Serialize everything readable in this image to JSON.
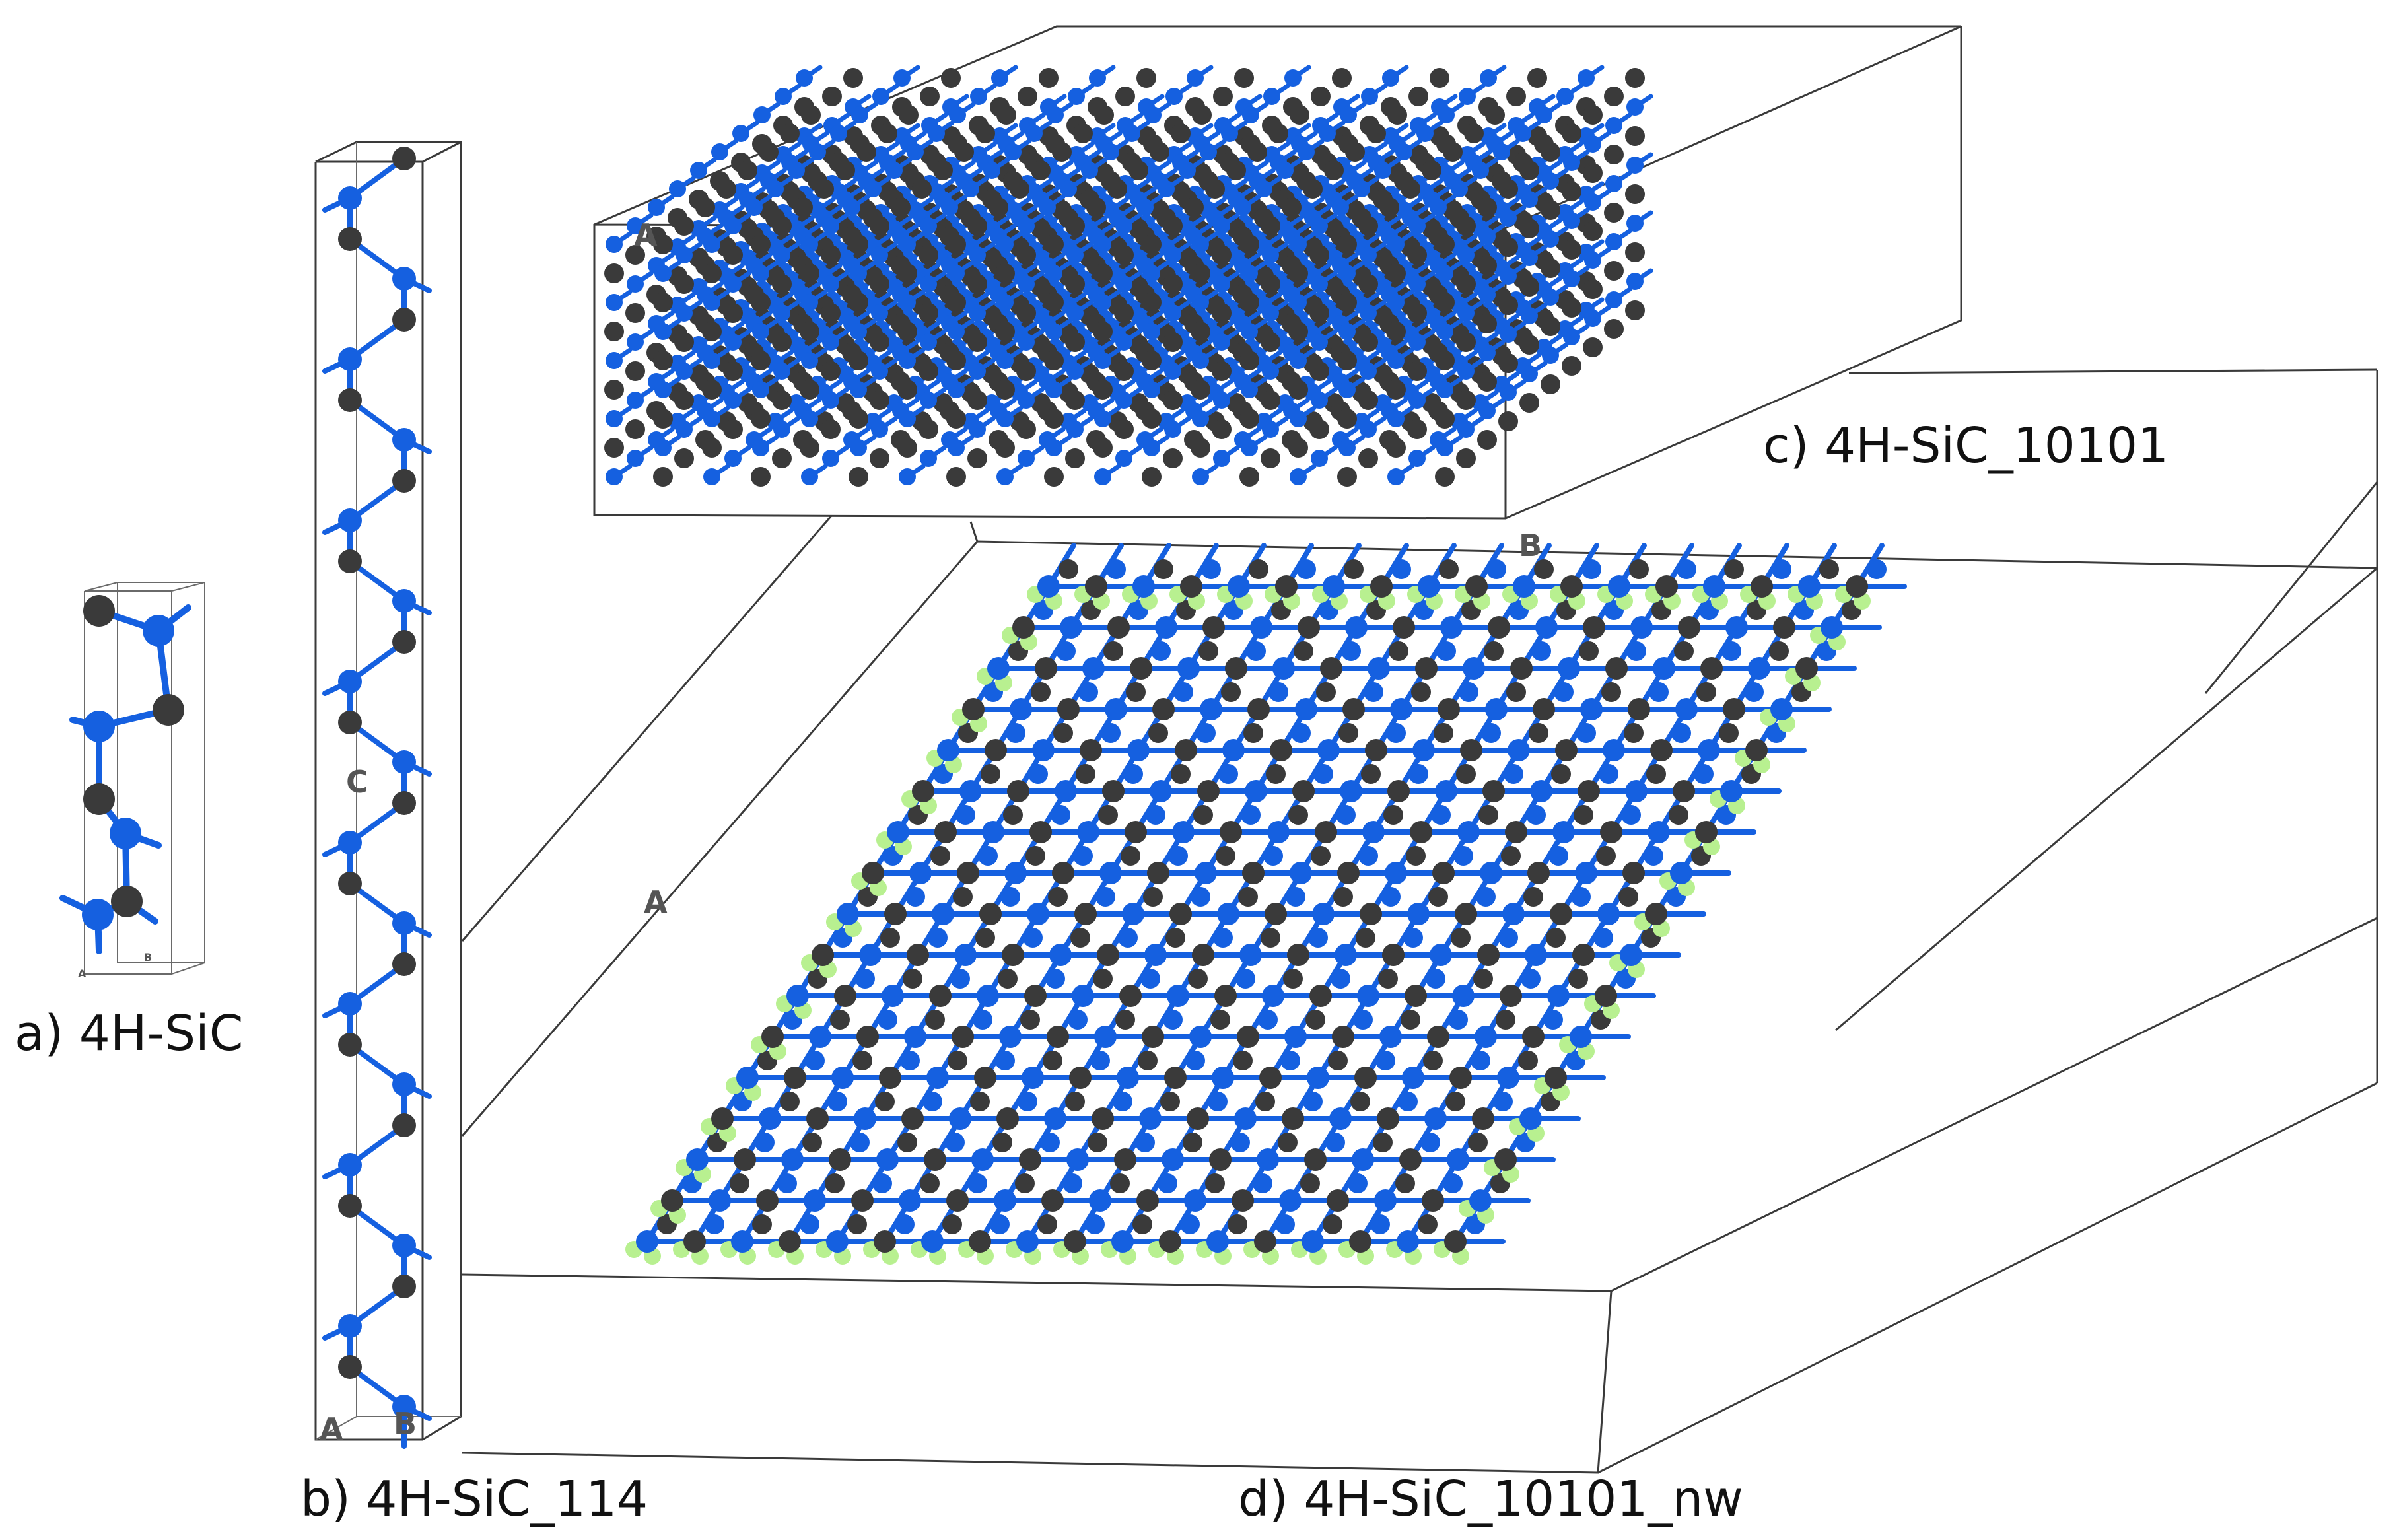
{
  "figure": {
    "colors": {
      "silicon": "#1560e0",
      "carbon": "#3a3a3a",
      "hydrogen": "#b8f090",
      "cell_outline": "#3a3a3a",
      "background": "#ffffff"
    },
    "panels": [
      {
        "id": "a",
        "caption": "a) 4H-SiC",
        "axis_labels": [
          "A",
          "B"
        ]
      },
      {
        "id": "b",
        "caption": "b) 4H-SiC_114",
        "axis_labels": [
          "A",
          "B",
          "C"
        ]
      },
      {
        "id": "c",
        "caption": "c) 4H-SiC_10101",
        "axis_labels": [
          "A"
        ]
      },
      {
        "id": "d",
        "caption": "d) 4H-SiC_10101_nw",
        "axis_labels": [
          "A",
          "B"
        ]
      }
    ]
  }
}
